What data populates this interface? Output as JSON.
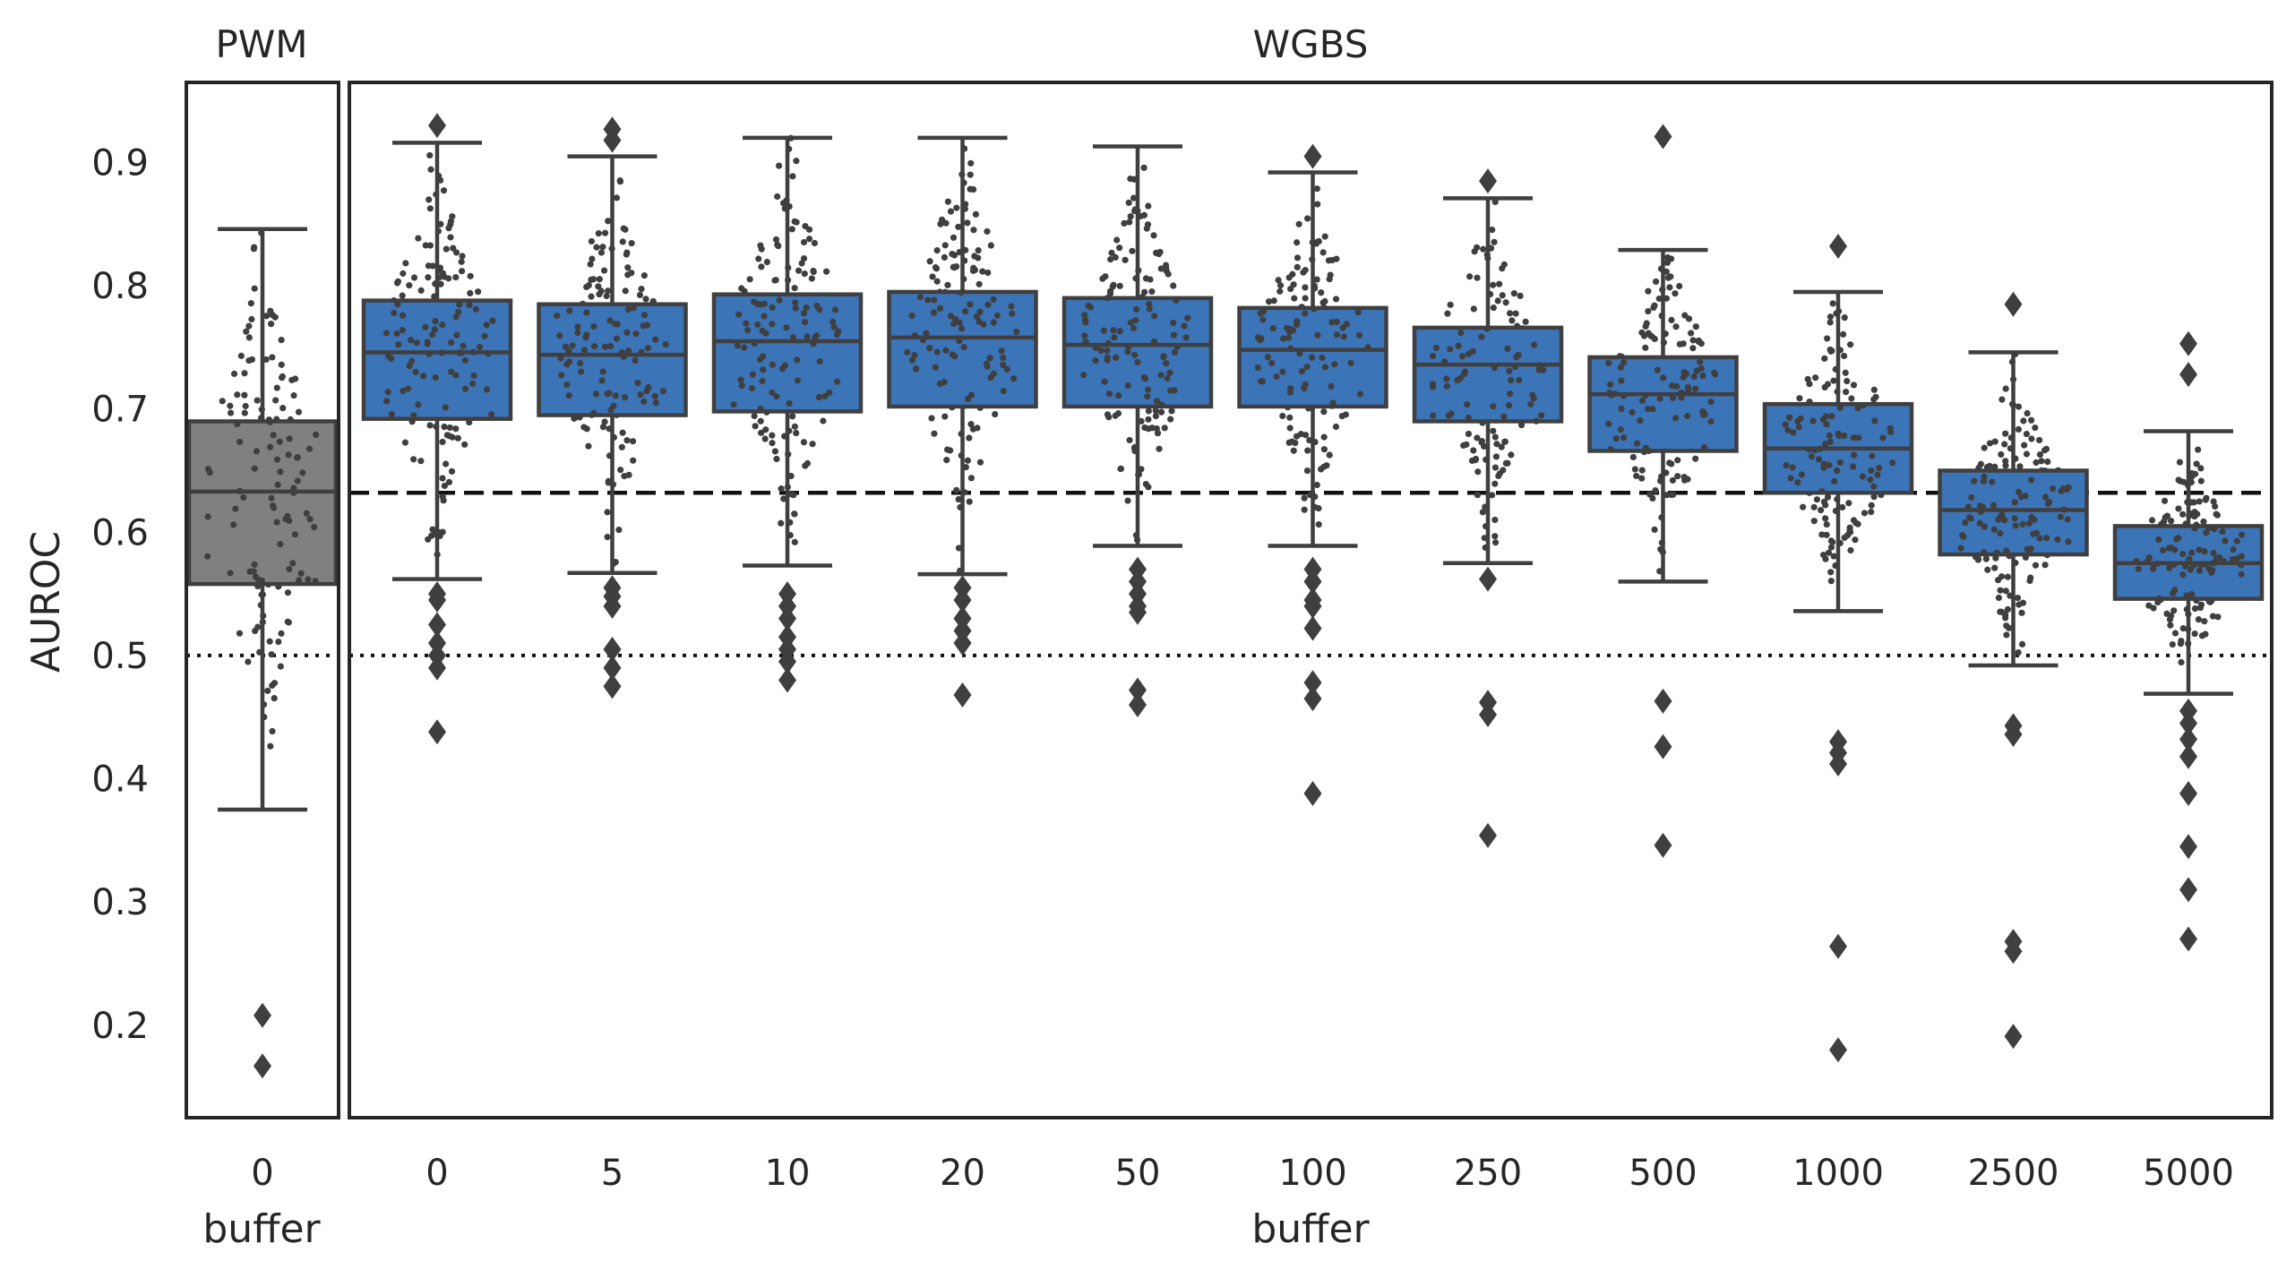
{
  "chart_data": [
    {
      "type": "box",
      "title": "PWM",
      "xlabel": "buffer",
      "ylabel": "AUROC",
      "ylim": [
        0.125,
        0.965
      ],
      "yticks": [
        0.2,
        0.3,
        0.4,
        0.5,
        0.6,
        0.7,
        0.8,
        0.9
      ],
      "yticklabels": [
        "0.2",
        "0.3",
        "0.4",
        "0.5",
        "0.6",
        "0.7",
        "0.8",
        "0.9"
      ],
      "box_color": "#808080",
      "reference_lines": [
        {
          "y": 0.632,
          "style": "dashed"
        },
        {
          "y": 0.5,
          "style": "dotted"
        }
      ],
      "categories": [
        "0"
      ],
      "boxes": [
        {
          "category": "0",
          "q1": 0.558,
          "median": 0.633,
          "q3": 0.69,
          "whisker_low": 0.375,
          "whisker_high": 0.846,
          "outliers": [
            0.208,
            0.167
          ]
        }
      ]
    },
    {
      "type": "box",
      "title": "WGBS",
      "xlabel": "buffer",
      "ylim": [
        0.125,
        0.965
      ],
      "box_color": "#3C74B8",
      "categories": [
        "0",
        "5",
        "10",
        "20",
        "50",
        "100",
        "250",
        "500",
        "1000",
        "2500",
        "5000"
      ],
      "boxes": [
        {
          "category": "0",
          "q1": 0.692,
          "median": 0.746,
          "q3": 0.788,
          "whisker_low": 0.562,
          "whisker_high": 0.916,
          "outliers": [
            0.93,
            0.55,
            0.545,
            0.525,
            0.51,
            0.5,
            0.49,
            0.438
          ]
        },
        {
          "category": "5",
          "q1": 0.695,
          "median": 0.744,
          "q3": 0.785,
          "whisker_low": 0.567,
          "whisker_high": 0.905,
          "outliers": [
            0.927,
            0.918,
            0.555,
            0.548,
            0.54,
            0.505,
            0.49,
            0.475
          ]
        },
        {
          "category": "10",
          "q1": 0.698,
          "median": 0.755,
          "q3": 0.793,
          "whisker_low": 0.573,
          "whisker_high": 0.92,
          "outliers": [
            0.55,
            0.54,
            0.53,
            0.515,
            0.505,
            0.495,
            0.48
          ]
        },
        {
          "category": "20",
          "q1": 0.702,
          "median": 0.758,
          "q3": 0.795,
          "whisker_low": 0.566,
          "whisker_high": 0.92,
          "outliers": [
            0.555,
            0.545,
            0.53,
            0.52,
            0.51,
            0.468
          ]
        },
        {
          "category": "50",
          "q1": 0.702,
          "median": 0.752,
          "q3": 0.79,
          "whisker_low": 0.589,
          "whisker_high": 0.913,
          "outliers": [
            0.57,
            0.56,
            0.55,
            0.54,
            0.535,
            0.472,
            0.46
          ]
        },
        {
          "category": "100",
          "q1": 0.702,
          "median": 0.748,
          "q3": 0.782,
          "whisker_low": 0.589,
          "whisker_high": 0.892,
          "outliers": [
            0.905,
            0.57,
            0.56,
            0.545,
            0.54,
            0.522,
            0.478,
            0.465,
            0.388
          ]
        },
        {
          "category": "250",
          "q1": 0.69,
          "median": 0.736,
          "q3": 0.766,
          "whisker_low": 0.575,
          "whisker_high": 0.871,
          "outliers": [
            0.885,
            0.562,
            0.462,
            0.452,
            0.354
          ]
        },
        {
          "category": "500",
          "q1": 0.666,
          "median": 0.712,
          "q3": 0.742,
          "whisker_low": 0.56,
          "whisker_high": 0.829,
          "outliers": [
            0.921,
            0.463,
            0.426,
            0.346
          ]
        },
        {
          "category": "1000",
          "q1": 0.632,
          "median": 0.668,
          "q3": 0.704,
          "whisker_low": 0.536,
          "whisker_high": 0.795,
          "outliers": [
            0.832,
            0.43,
            0.421,
            0.412,
            0.264,
            0.18
          ]
        },
        {
          "category": "2500",
          "q1": 0.582,
          "median": 0.618,
          "q3": 0.65,
          "whisker_low": 0.492,
          "whisker_high": 0.746,
          "outliers": [
            0.785,
            0.443,
            0.436,
            0.268,
            0.26,
            0.191
          ]
        },
        {
          "category": "5000",
          "q1": 0.546,
          "median": 0.575,
          "q3": 0.605,
          "whisker_low": 0.469,
          "whisker_high": 0.682,
          "outliers": [
            0.753,
            0.728,
            0.455,
            0.445,
            0.432,
            0.418,
            0.388,
            0.345,
            0.31,
            0.27
          ]
        }
      ]
    }
  ],
  "swarm_color": "#3f3f3f",
  "outlier_color": "#3f3f3f"
}
